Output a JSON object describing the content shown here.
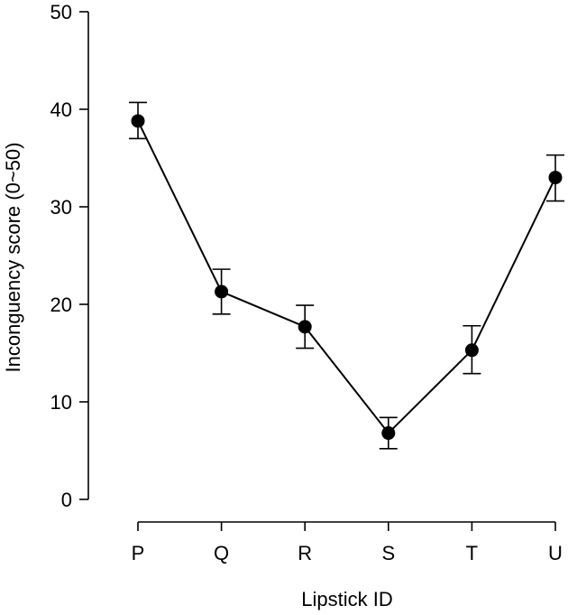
{
  "chart_data": {
    "type": "line",
    "title": "",
    "xlabel": "Lipstick ID",
    "ylabel": "Inconguency score (0~50)",
    "categories": [
      "P",
      "Q",
      "R",
      "S",
      "T",
      "U"
    ],
    "series": [
      {
        "name": "Inconguency score",
        "values": [
          38.8,
          21.3,
          17.7,
          6.8,
          15.3,
          33.0
        ],
        "error_low": [
          37.0,
          19.0,
          15.5,
          5.2,
          12.9,
          30.6
        ],
        "error_high": [
          40.7,
          23.6,
          19.9,
          8.4,
          17.8,
          35.3
        ]
      }
    ],
    "ylim": [
      0,
      50
    ],
    "yticks": [
      0,
      10,
      20,
      30,
      40,
      50
    ],
    "grid": false,
    "colors": {
      "line": "#000000",
      "point": "#000000"
    }
  }
}
